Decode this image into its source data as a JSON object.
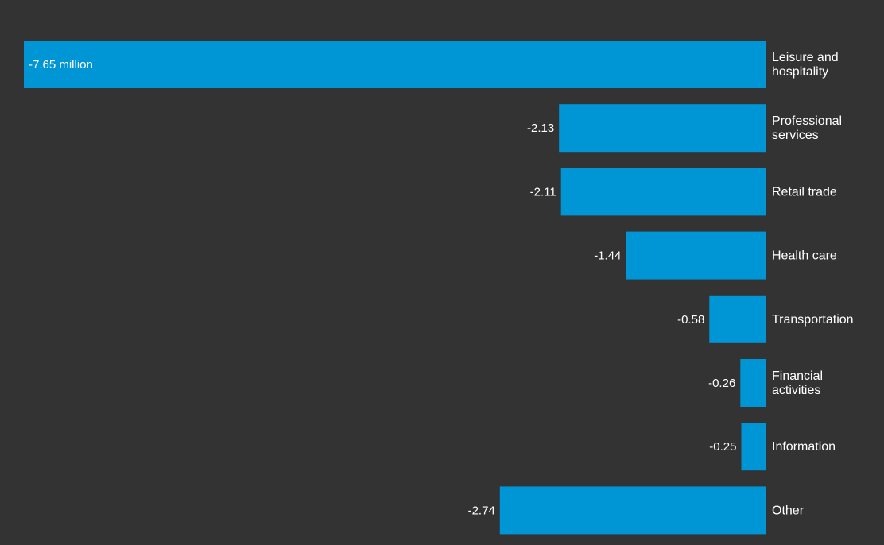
{
  "chart_data": {
    "type": "bar",
    "orientation": "horizontal",
    "title": "",
    "xlabel": "",
    "ylabel": "",
    "grid": false,
    "legend": "none",
    "bar_color": "#0096d6",
    "background_color": "#333333",
    "xlim": [
      -7.65,
      0
    ],
    "categories": [
      {
        "lines": [
          "Leisure and",
          "hospitality"
        ]
      },
      {
        "lines": [
          "Professional",
          "services"
        ]
      },
      {
        "lines": [
          "Retail trade"
        ]
      },
      {
        "lines": [
          "Health care"
        ]
      },
      {
        "lines": [
          "Transportation"
        ]
      },
      {
        "lines": [
          "Financial",
          "activities"
        ]
      },
      {
        "lines": [
          "Information"
        ]
      },
      {
        "lines": [
          "Other"
        ]
      }
    ],
    "values": [
      -7.65,
      -2.13,
      -2.11,
      -1.44,
      -0.58,
      -0.26,
      -0.25,
      -2.74
    ],
    "value_labels": [
      "-7.65 million",
      "-2.13",
      "-2.11",
      "-1.44",
      "-0.58",
      "-0.26",
      "-0.25",
      "-2.74"
    ]
  }
}
